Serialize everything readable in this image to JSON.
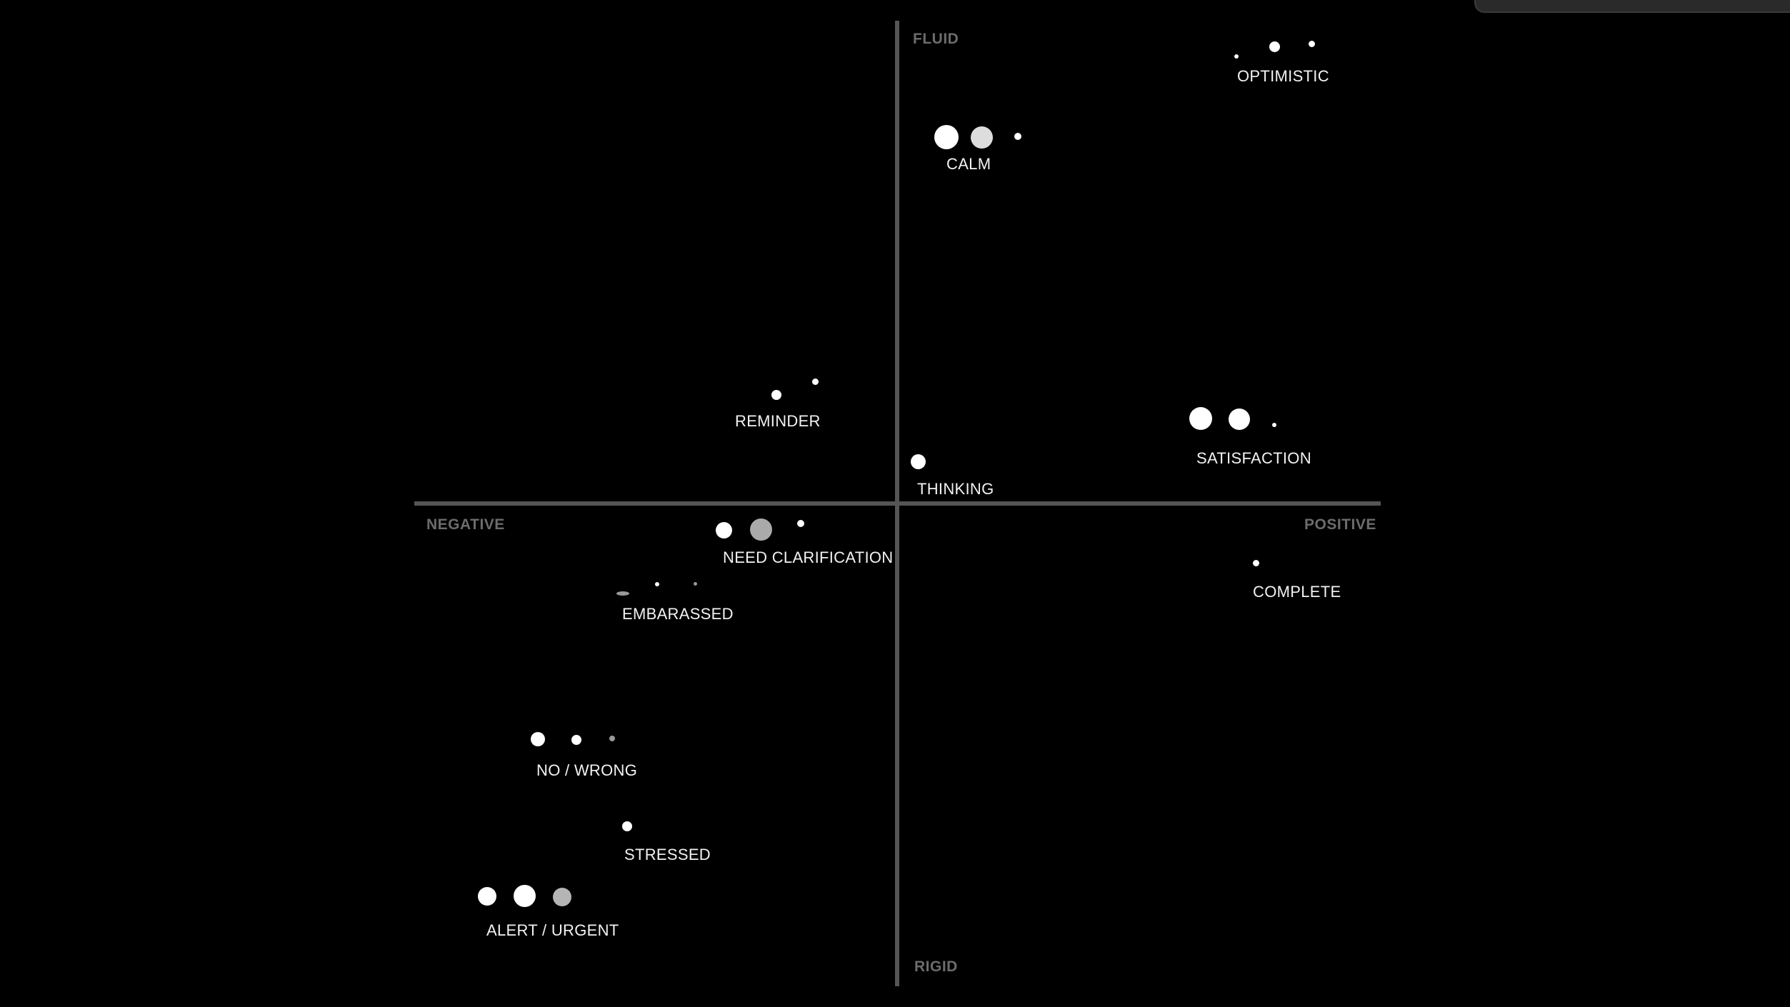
{
  "axes": {
    "top": "FLUID",
    "bottom": "RIGID",
    "left": "NEGATIVE",
    "right": "POSITIVE"
  },
  "colors": {
    "background": "#000000",
    "axis": "#555555",
    "axis_label": "#6c6c6c",
    "dot_primary": "#ffffff",
    "dot_secondary": "#cccccc",
    "dot_muted": "#999999",
    "label": "#f2f2f2"
  },
  "emotions": [
    {
      "id": "optimistic",
      "label": "OPTIMISTIC"
    },
    {
      "id": "calm",
      "label": "CALM"
    },
    {
      "id": "reminder",
      "label": "REMINDER"
    },
    {
      "id": "satisfaction",
      "label": "SATISFACTION"
    },
    {
      "id": "thinking",
      "label": "THINKING"
    },
    {
      "id": "need-clarification",
      "label": "NEED CLARIFICATION"
    },
    {
      "id": "complete",
      "label": "COMPLETE"
    },
    {
      "id": "embarassed",
      "label": "EMBARASSED"
    },
    {
      "id": "no-wrong",
      "label": "NO / WRONG"
    },
    {
      "id": "stressed",
      "label": "STRESSED"
    },
    {
      "id": "alert-urgent",
      "label": "ALERT / URGENT"
    }
  ]
}
